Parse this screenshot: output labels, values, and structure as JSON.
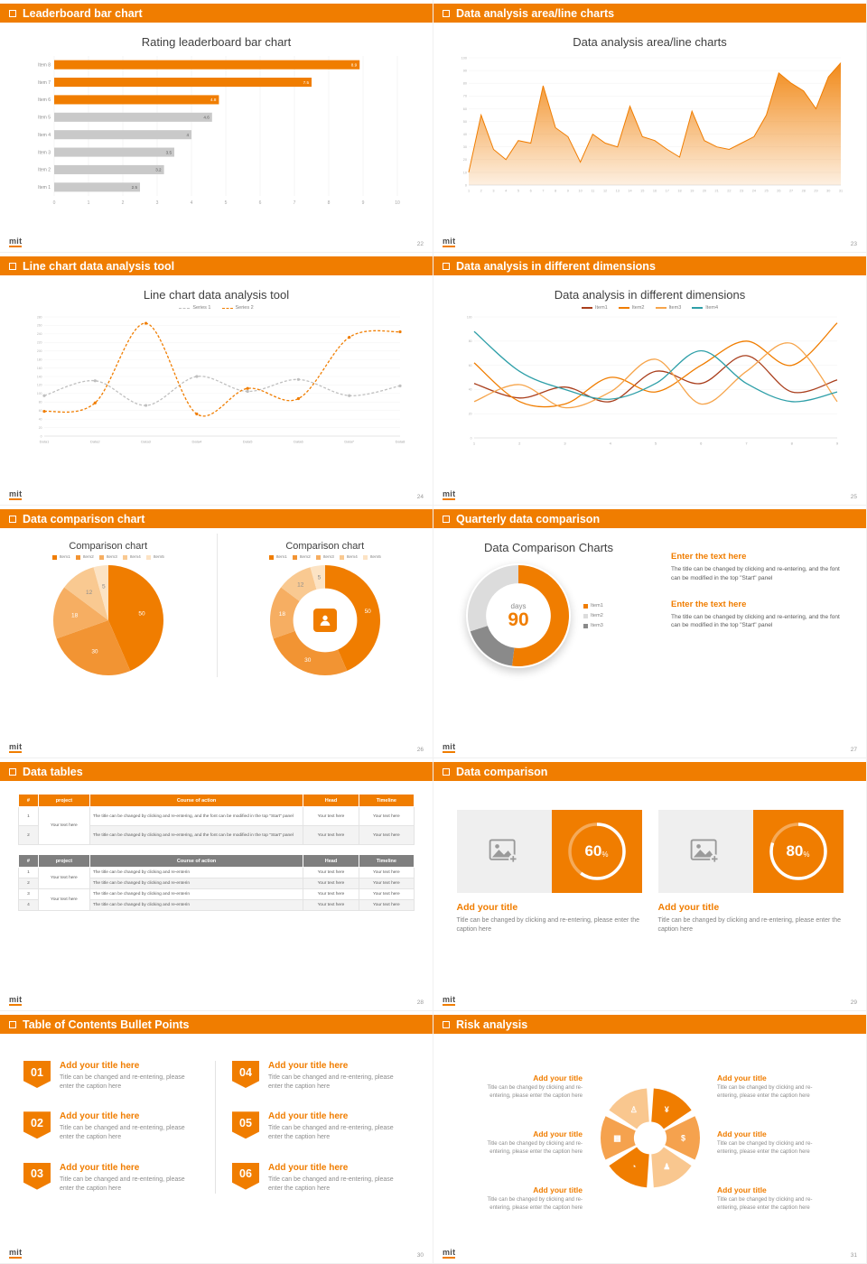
{
  "accent": "#F07D00",
  "logo": "mit",
  "slides": {
    "s1": {
      "header": "Leaderboard bar chart",
      "page": "22",
      "chart": {
        "type": "hbar",
        "title": "Rating leaderboard bar chart",
        "categories": [
          "Item 1",
          "Item 2",
          "Item 3",
          "Item 4",
          "Item 5",
          "Item 6",
          "Item 7",
          "Item 8"
        ],
        "values": [
          2.5,
          3.2,
          3.5,
          4,
          4.6,
          4.8,
          7.5,
          8.9
        ],
        "highlight_count": 3,
        "xlim": [
          0,
          10
        ],
        "xticks": [
          0,
          1,
          2,
          3,
          4,
          5,
          6,
          7,
          8,
          9,
          10
        ],
        "accent": "#F07D00",
        "bar_color": "#C9C9C9"
      }
    },
    "s2": {
      "header": "Data analysis area/line charts",
      "page": "23",
      "chart": {
        "type": "area",
        "title": "Data analysis area/line charts",
        "x_labels": [
          "1",
          "2",
          "3",
          "4",
          "5",
          "6",
          "7",
          "8",
          "9",
          "10",
          "11",
          "12",
          "13",
          "14",
          "15",
          "16",
          "17",
          "18",
          "19",
          "20",
          "21",
          "22",
          "23",
          "24",
          "25",
          "26",
          "27",
          "28",
          "29",
          "30",
          "31"
        ],
        "values": [
          10,
          55,
          28,
          20,
          35,
          33,
          78,
          45,
          38,
          18,
          40,
          33,
          30,
          62,
          38,
          35,
          28,
          22,
          58,
          35,
          30,
          28,
          33,
          38,
          55,
          88,
          80,
          74,
          60,
          85,
          96
        ],
        "ylim": [
          0,
          100
        ],
        "ytick_step": 10,
        "color": "#F07D00"
      }
    },
    "s3": {
      "header": "Line chart data analysis tool",
      "page": "24",
      "chart": {
        "type": "lines",
        "title": "Line chart data analysis tool",
        "categories": [
          "Data1",
          "Data2",
          "Data3",
          "Data4",
          "Data5",
          "Data6",
          "Data7",
          "Data8"
        ],
        "ylim": [
          0,
          280
        ],
        "ytick_step": 20,
        "smooth": true,
        "dashed": true,
        "markers": true,
        "series": [
          {
            "name": "Series 1",
            "color": "#BFBFBF",
            "values": [
              95,
              130,
              72,
              140,
              105,
              133,
              95,
              118
            ]
          },
          {
            "name": "Series 2",
            "color": "#F07D00",
            "values": [
              58,
              78,
              265,
              52,
              112,
              88,
              232,
              245
            ]
          }
        ]
      }
    },
    "s4": {
      "header": "Data analysis in different dimensions",
      "page": "25",
      "chart": {
        "type": "lines",
        "title": "Data analysis in different dimensions",
        "categories": [
          "1",
          "2",
          "3",
          "4",
          "5",
          "6",
          "7",
          "8",
          "9"
        ],
        "ylim": [
          0,
          100
        ],
        "ytick_step": 20,
        "smooth": true,
        "dashed": false,
        "markers": false,
        "series": [
          {
            "name": "Item1",
            "color": "#A93E1C",
            "values": [
              45,
              33,
              42,
              30,
              55,
              45,
              68,
              38,
              48
            ]
          },
          {
            "name": "Item2",
            "color": "#F07D00",
            "values": [
              62,
              30,
              28,
              50,
              38,
              60,
              80,
              60,
              95
            ]
          },
          {
            "name": "Item3",
            "color": "#F6A54C",
            "values": [
              30,
              44,
              25,
              38,
              65,
              28,
              55,
              78,
              30
            ]
          },
          {
            "name": "Item4",
            "color": "#2E9FA8",
            "values": [
              88,
              55,
              40,
              32,
              45,
              72,
              45,
              30,
              38
            ]
          }
        ]
      }
    },
    "s5": {
      "header": "Data comparison chart",
      "page": "26",
      "left": {
        "title": "Comparison chart",
        "legend": [
          "Item1",
          "Item2",
          "Item3",
          "Item4",
          "Item5"
        ],
        "chart": {
          "type": "pie",
          "inner": 0,
          "values": [
            50,
            30,
            18,
            12,
            5
          ],
          "colors": [
            "#F07D00",
            "#F29433",
            "#F6AE62",
            "#F9C991",
            "#FCE3C4"
          ]
        }
      },
      "right": {
        "title": "Comparison chart",
        "legend": [
          "Item1",
          "Item2",
          "Item3",
          "Item4",
          "Item5"
        ],
        "chart": {
          "type": "pie",
          "inner": 0.58,
          "values": [
            50,
            30,
            18,
            12,
            5
          ],
          "colors": [
            "#F07D00",
            "#F29433",
            "#F6AE62",
            "#F9C991",
            "#FCE3C4"
          ]
        }
      }
    },
    "s6": {
      "header": "Quarterly data comparison",
      "page": "27",
      "title": "Data Comparison Charts",
      "chart": {
        "type": "pie",
        "inner": 0.64,
        "show_values": false,
        "values": [
          52,
          18,
          30
        ],
        "colors": [
          "#F07D00",
          "#8A8A8A",
          "#DCDCDC"
        ]
      },
      "center_top": "days",
      "center_value": "90",
      "legend": [
        "Item1",
        "Item2",
        "Item3"
      ],
      "blocks": [
        {
          "heading": "Enter the text here",
          "body": "The title can be changed by clicking and re-entering, and the font can be modified in the top \"Start\" panel"
        },
        {
          "heading": "Enter the text here",
          "body": "The title can be changed by clicking and re-entering, and the font can be modified in the top \"Start\" panel"
        }
      ]
    },
    "s7": {
      "header": "Data tables",
      "page": "28",
      "table1": {
        "columns": [
          "#",
          "project",
          "Course of action",
          "Head",
          "Timeline"
        ],
        "project": "Your text here",
        "rows": [
          {
            "num": "1",
            "action": "The title can be changed by clicking and re-entering, and the font can be modified in the top \"Start\" panel",
            "head": "Your text here",
            "timeline": "Your text here"
          },
          {
            "num": "2",
            "action": "The title can be changed by clicking and re-entering, and the font can be modified in the top \"Start\" panel",
            "head": "Your text here",
            "timeline": "Your text here"
          }
        ]
      },
      "table2": {
        "columns": [
          "#",
          "project",
          "Course of action",
          "Head",
          "Timeline"
        ],
        "projects": [
          "Your text here",
          "Your text here"
        ],
        "rows": [
          {
            "num": "1",
            "action": "The title can be changed by clicking and re-enterin",
            "head": "Your text here",
            "timeline": "Your text here"
          },
          {
            "num": "2",
            "action": "The title can be changed by clicking and re-enterin",
            "head": "Your text here",
            "timeline": "Your text here"
          },
          {
            "num": "3",
            "action": "The title can be changed by clicking and re-enterin",
            "head": "Your text here",
            "timeline": "Your text here"
          },
          {
            "num": "4",
            "action": "The title can be changed by clicking and re-enterin",
            "head": "Your text here",
            "timeline": "Your text here"
          }
        ]
      }
    },
    "s8": {
      "header": "Data comparison",
      "page": "29",
      "cards": [
        {
          "type": "ring",
          "percent": 60,
          "suffix": "%",
          "title": "Add your title",
          "caption": "Title can be changed by clicking and re-entering, please enter the caption here"
        },
        {
          "type": "ring",
          "percent": 80,
          "suffix": "%",
          "title": "Add your title",
          "caption": "Title can be changed by clicking and re-entering, please enter the caption here"
        }
      ]
    },
    "s9": {
      "header": "Table of Contents Bullet Points",
      "page": "30",
      "items": [
        {
          "num": "01",
          "title": "Add your title here",
          "caption": "Title can be changed and re-entering, please enter the caption here"
        },
        {
          "num": "02",
          "title": "Add your title here",
          "caption": "Title can be changed and re-entering, please enter the caption here"
        },
        {
          "num": "03",
          "title": "Add your title here",
          "caption": "Title can be changed and re-entering, please enter the caption here"
        },
        {
          "num": "04",
          "title": "Add your title here",
          "caption": "Title can be changed and re-entering, please enter the caption here"
        },
        {
          "num": "05",
          "title": "Add your title here",
          "caption": "Title can be changed and re-entering, please enter the caption here"
        },
        {
          "num": "06",
          "title": "Add your title here",
          "caption": "Title can be changed and re-entering, please enter the caption here"
        }
      ]
    },
    "s10": {
      "header": "Risk analysis",
      "page": "31",
      "wheel": {
        "type": "wheel",
        "icons": [
          {
            "name": "money-bag-icon",
            "glyph": "¥"
          },
          {
            "name": "coins-icon",
            "glyph": "$"
          },
          {
            "name": "people-icon",
            "glyph": "♟"
          },
          {
            "name": "pie-chart-icon",
            "glyph": "◔"
          },
          {
            "name": "bank-icon",
            "glyph": "▦"
          },
          {
            "name": "person-icon",
            "glyph": "♙"
          }
        ]
      },
      "items": [
        {
          "title": "Add your title",
          "caption": "Title can be changed by clicking and re-entering, please enter the caption here"
        },
        {
          "title": "Add your title",
          "caption": "Title can be changed by clicking and re-entering, please enter the caption here"
        },
        {
          "title": "Add your title",
          "caption": "Title can be changed by clicking and re-entering, please enter the caption here"
        },
        {
          "title": "Add your title",
          "caption": "Title can be changed by clicking and re-entering, please enter the caption here"
        },
        {
          "title": "Add your title",
          "caption": "Title can be changed by clicking and re-entering, please enter the caption here"
        },
        {
          "title": "Add your title",
          "caption": "Title can be changed by clicking and re-entering, please enter the caption here"
        }
      ]
    }
  }
}
